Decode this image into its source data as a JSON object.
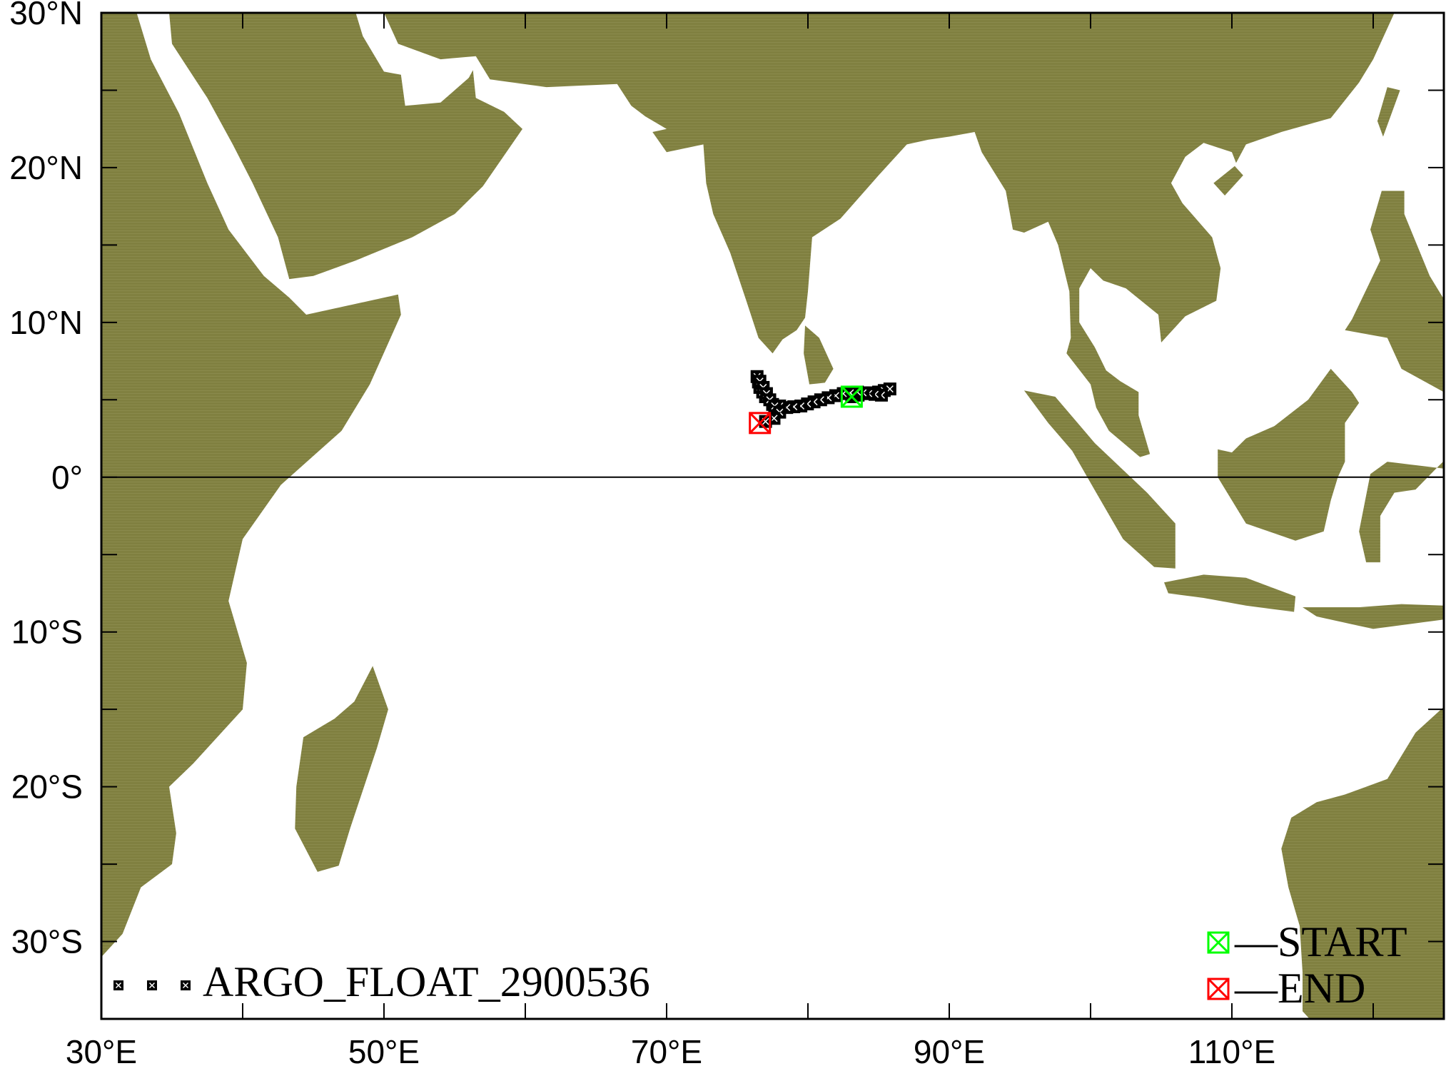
{
  "map": {
    "projection": "equirectangular",
    "lon_range": [
      30,
      125
    ],
    "lat_range": [
      -35,
      30
    ],
    "land_color": "#808040",
    "ocean_color": "#ffffff",
    "equator_line": true,
    "x_tick_labels": [
      {
        "lon": 30,
        "label": "30°E"
      },
      {
        "lon": 50,
        "label": "50°E"
      },
      {
        "lon": 70,
        "label": "70°E"
      },
      {
        "lon": 90,
        "label": "90°E"
      },
      {
        "lon": 110,
        "label": "110°E"
      }
    ],
    "y_tick_labels": [
      {
        "lat": 30,
        "label": "30°N"
      },
      {
        "lat": 20,
        "label": "20°N"
      },
      {
        "lat": 10,
        "label": "10°N"
      },
      {
        "lat": 0,
        "label": "0°"
      },
      {
        "lat": -10,
        "label": "10°S"
      },
      {
        "lat": -20,
        "label": "20°S"
      },
      {
        "lat": -30,
        "label": "30°S"
      }
    ]
  },
  "track": {
    "name": "ARGO_FLOAT_2900536",
    "marker_color": "#000000",
    "points": [
      [
        83.1,
        5.2
      ],
      [
        84.0,
        5.4
      ],
      [
        85.0,
        5.5
      ],
      [
        85.8,
        5.7
      ],
      [
        85.2,
        5.3
      ],
      [
        84.3,
        5.4
      ],
      [
        83.5,
        5.5
      ],
      [
        82.5,
        5.4
      ],
      [
        80.9,
        5.0
      ],
      [
        79.5,
        4.6
      ],
      [
        78.5,
        4.5
      ],
      [
        77.5,
        4.7
      ],
      [
        77.0,
        5.2
      ],
      [
        76.6,
        5.8
      ],
      [
        76.4,
        6.5
      ],
      [
        76.6,
        6.2
      ],
      [
        77.3,
        5.0
      ],
      [
        78.0,
        4.2
      ],
      [
        77.6,
        3.8
      ],
      [
        77.0,
        3.6
      ],
      [
        76.6,
        3.5
      ]
    ],
    "start": {
      "lon": 83.1,
      "lat": 5.2,
      "color": "#00ff00"
    },
    "end": {
      "lon": 76.6,
      "lat": 3.5,
      "color": "#ff0000"
    }
  },
  "legend": {
    "float_label": "ARGO_FLOAT_2900536",
    "start_label": "—START",
    "end_label": "—END"
  }
}
